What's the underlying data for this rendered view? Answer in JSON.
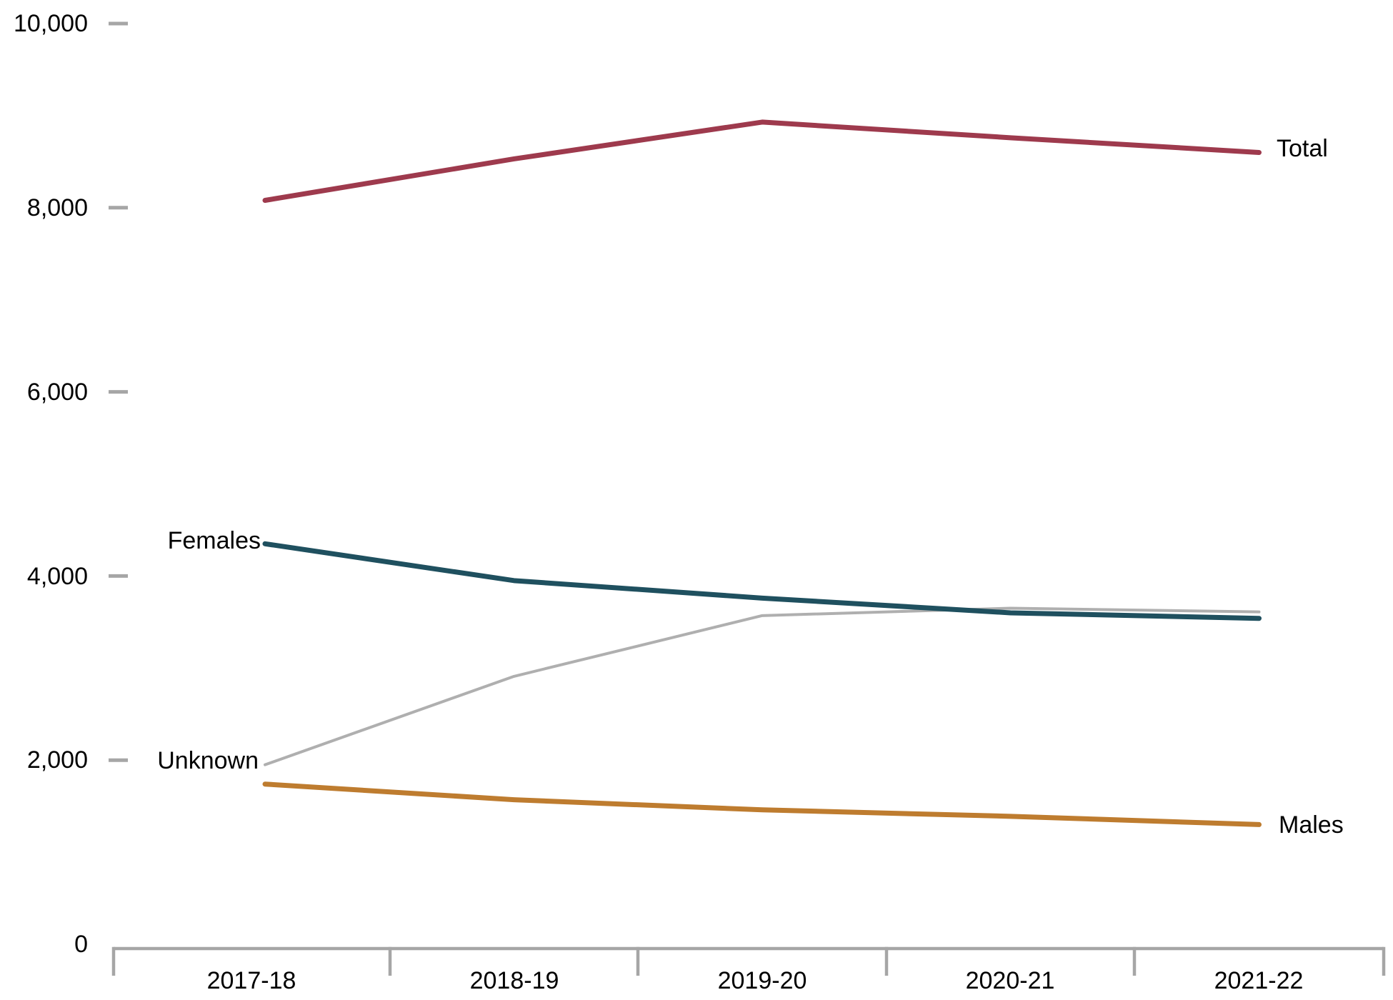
{
  "chart_data": {
    "type": "line",
    "title": "",
    "categories": [
      "2017-18",
      "2018-19",
      "2019-20",
      "2020-21",
      "2021-22"
    ],
    "series": [
      {
        "name": "Total",
        "color": "#9E3A4D",
        "stroke_width": 7,
        "label_side": "right",
        "values": [
          8080,
          8530,
          8930,
          8760,
          8600
        ]
      },
      {
        "name": "Females",
        "color": "#1F505F",
        "stroke_width": 7,
        "label_side": "left",
        "values": [
          4350,
          3950,
          3760,
          3600,
          3540
        ]
      },
      {
        "name": "Unknown",
        "color": "#AFAFAF",
        "stroke_width": 4,
        "label_side": "left",
        "values": [
          1950,
          2910,
          3570,
          3650,
          3610
        ]
      },
      {
        "name": "Males",
        "color": "#BE7C2F",
        "stroke_width": 7,
        "label_side": "right",
        "values": [
          1740,
          1570,
          1460,
          1390,
          1300
        ]
      }
    ],
    "y_axis": {
      "min": 0,
      "max": 10000,
      "tick_interval": 2000,
      "tick_labels": [
        "0",
        "2,000",
        "4,000",
        "6,000",
        "8,000",
        "10,000"
      ]
    },
    "grid": false,
    "legend": "direct-line-labels",
    "colors": {
      "axis": "#A6A6A6",
      "text": "#000000",
      "background": "#FFFFFF"
    }
  }
}
